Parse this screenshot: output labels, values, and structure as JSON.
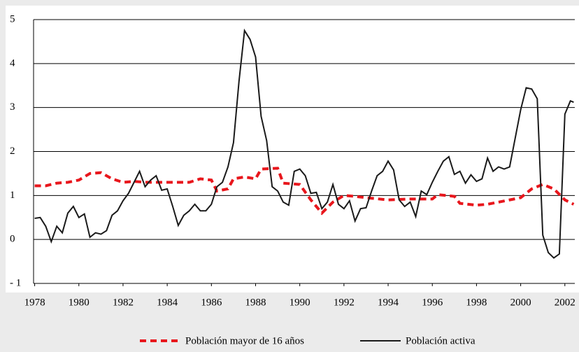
{
  "chart_data": {
    "type": "line",
    "xlim": [
      1977.95,
      2002.45
    ],
    "xticks": [
      1978,
      1980,
      1982,
      1984,
      1986,
      1988,
      1990,
      1992,
      1994,
      1996,
      1998,
      2000,
      2002
    ],
    "ylim": [
      -1,
      5
    ],
    "yticks": [
      {
        "value": -1,
        "label": "- 1"
      },
      0,
      1,
      2,
      3,
      4,
      5
    ],
    "grid": true,
    "legend": "bottom",
    "series": [
      {
        "name": "Población mayor de 16 años",
        "color": "#e8161c",
        "dashed": true,
        "x": [
          1978,
          1978.5,
          1979,
          1979.5,
          1980,
          1980.5,
          1981,
          1981.5,
          1982,
          1982.5,
          1983,
          1983.5,
          1984,
          1984.5,
          1985,
          1985.5,
          1986,
          1986.25,
          1986.75,
          1987,
          1987.5,
          1988,
          1988.25,
          1989,
          1989.25,
          1990,
          1990.5,
          1991,
          1991.5,
          1992,
          1992.5,
          1993,
          1994,
          1995,
          1996,
          1996.25,
          1997,
          1997.25,
          1998,
          1998.5,
          1999,
          2000,
          2000.5,
          2001,
          2001.5,
          2002,
          2002.4
        ],
        "values": [
          1.22,
          1.22,
          1.28,
          1.3,
          1.35,
          1.5,
          1.52,
          1.38,
          1.3,
          1.32,
          1.3,
          1.3,
          1.3,
          1.3,
          1.3,
          1.38,
          1.35,
          1.1,
          1.15,
          1.38,
          1.42,
          1.38,
          1.6,
          1.62,
          1.28,
          1.25,
          0.9,
          0.6,
          0.85,
          1.0,
          0.98,
          0.95,
          0.9,
          0.92,
          0.92,
          1.02,
          0.98,
          0.82,
          0.78,
          0.8,
          0.85,
          0.95,
          1.15,
          1.25,
          1.15,
          0.9,
          0.8
        ]
      },
      {
        "name": "Población activa",
        "color": "#1a1a1a",
        "dashed": false,
        "x": [
          1978,
          1978.25,
          1978.5,
          1978.75,
          1979,
          1979.25,
          1979.5,
          1979.75,
          1980,
          1980.25,
          1980.5,
          1980.75,
          1981,
          1981.25,
          1981.5,
          1981.75,
          1982,
          1982.25,
          1982.5,
          1982.75,
          1983,
          1983.25,
          1983.5,
          1983.75,
          1984,
          1984.25,
          1984.5,
          1984.75,
          1985,
          1985.25,
          1985.5,
          1985.75,
          1986,
          1986.25,
          1986.5,
          1986.75,
          1987,
          1987.25,
          1987.5,
          1987.75,
          1988,
          1988.25,
          1988.5,
          1988.75,
          1989,
          1989.25,
          1989.5,
          1989.75,
          1990,
          1990.25,
          1990.5,
          1990.75,
          1991,
          1991.25,
          1991.5,
          1991.75,
          1992,
          1992.25,
          1992.5,
          1992.75,
          1993,
          1993.25,
          1993.5,
          1993.75,
          1994,
          1994.25,
          1994.5,
          1994.75,
          1995,
          1995.25,
          1995.5,
          1995.75,
          1996,
          1996.25,
          1996.5,
          1996.75,
          1997,
          1997.25,
          1997.5,
          1997.75,
          1998,
          1998.25,
          1998.5,
          1998.75,
          1999,
          1999.25,
          1999.5,
          1999.75,
          2000,
          2000.25,
          2000.5,
          2000.75,
          2001,
          2001.25,
          2001.5,
          2001.75,
          2002,
          2002.25,
          2002.4
        ],
        "values": [
          0.48,
          0.5,
          0.3,
          -0.05,
          0.3,
          0.15,
          0.6,
          0.75,
          0.5,
          0.58,
          0.05,
          0.15,
          0.12,
          0.2,
          0.55,
          0.65,
          0.88,
          1.05,
          1.3,
          1.55,
          1.2,
          1.35,
          1.45,
          1.12,
          1.15,
          0.75,
          0.32,
          0.55,
          0.65,
          0.8,
          0.65,
          0.65,
          0.8,
          1.2,
          1.3,
          1.65,
          2.2,
          3.6,
          4.75,
          4.55,
          4.15,
          2.8,
          2.25,
          1.2,
          1.1,
          0.85,
          0.78,
          1.55,
          1.6,
          1.45,
          1.05,
          1.07,
          0.7,
          0.85,
          1.25,
          0.8,
          0.7,
          0.88,
          0.42,
          0.7,
          0.72,
          1.1,
          1.45,
          1.55,
          1.78,
          1.58,
          0.9,
          0.75,
          0.85,
          0.52,
          1.1,
          1.02,
          1.3,
          1.55,
          1.78,
          1.88,
          1.48,
          1.55,
          1.28,
          1.47,
          1.32,
          1.38,
          1.85,
          1.55,
          1.65,
          1.6,
          1.65,
          2.3,
          2.95,
          3.45,
          3.42,
          3.2,
          0.1,
          -0.3,
          -0.42,
          -0.33,
          2.85,
          3.15,
          3.12
        ]
      }
    ]
  }
}
